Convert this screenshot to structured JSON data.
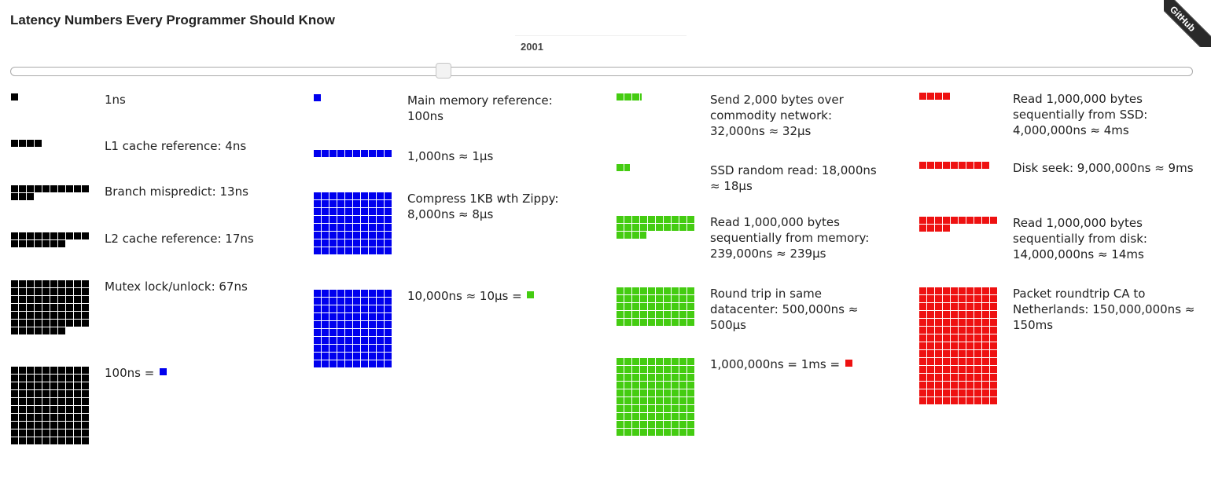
{
  "title": "Latency Numbers Every Programmer Should Know",
  "year": "2001",
  "slider": {
    "value": 2001
  },
  "ribbon": "GitHub",
  "colors": {
    "ns": "#000000",
    "100ns": "#0000ee",
    "10us": "#44cc11",
    "1ms": "#ee1111"
  },
  "columns": [
    {
      "color": "#000000",
      "items": [
        {
          "label": "1ns",
          "count": 1
        },
        {
          "label": "L1 cache reference: 4ns",
          "count": 4
        },
        {
          "label": "Branch mispredict: 13ns",
          "count": 13
        },
        {
          "label": "L2 cache reference: 17ns",
          "count": 17
        },
        {
          "label": "Mutex lock/unlock: 67ns",
          "count": 67
        },
        {
          "label": "100ns = ",
          "count": 100,
          "unit_color": "#0000ee"
        }
      ]
    },
    {
      "color": "#0000ee",
      "items": [
        {
          "label": "Main memory reference: 100ns",
          "count": 1
        },
        {
          "label": "1,000ns ≈ 1μs",
          "count": 10
        },
        {
          "label": "Compress 1KB wth Zippy: 8,000ns ≈ 8μs",
          "count": 80
        },
        {
          "label": "10,000ns ≈ 10μs = ",
          "count": 100,
          "unit_color": "#44cc11"
        }
      ]
    },
    {
      "color": "#44cc11",
      "items": [
        {
          "label": "Send 2,000 bytes over commodity network: 32,000ns ≈ 32μs",
          "count": 3.2
        },
        {
          "label": "SSD random read: 18,000ns ≈ 18μs",
          "count": 1.8
        },
        {
          "label": "Read 1,000,000 bytes sequentially from memory: 239,000ns ≈ 239μs",
          "count": 23.9
        },
        {
          "label": "Round trip in same datacenter: 500,000ns ≈ 500μs",
          "count": 50
        },
        {
          "label": "1,000,000ns = 1ms = ",
          "count": 100,
          "unit_color": "#ee1111"
        }
      ]
    },
    {
      "color": "#ee1111",
      "items": [
        {
          "label": "Read 1,000,000 bytes sequentially from SSD: 4,000,000ns ≈ 4ms",
          "count": 4
        },
        {
          "label": "Disk seek: 9,000,000ns ≈ 9ms",
          "count": 9
        },
        {
          "label": "Read 1,000,000 bytes sequentially from disk: 14,000,000ns ≈ 14ms",
          "count": 14
        },
        {
          "label": "Packet roundtrip CA to Netherlands: 150,000,000ns ≈ 150ms",
          "count": 150
        }
      ]
    }
  ]
}
